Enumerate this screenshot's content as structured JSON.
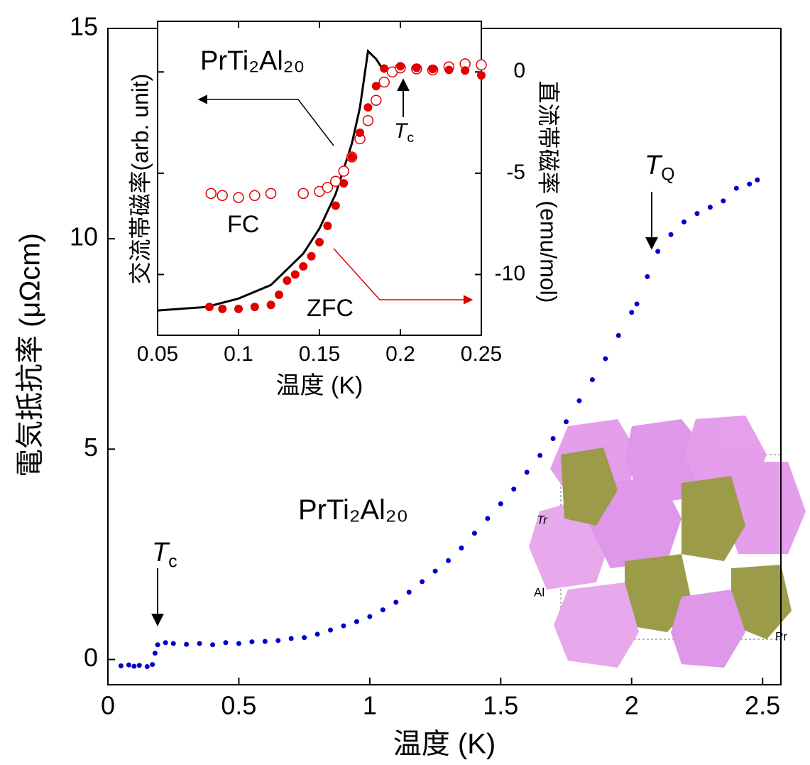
{
  "chart_data": [
    {
      "type": "scatter",
      "xlabel": "温度 (K)",
      "ylabel": "電気抵抗率 (μΩcm)",
      "xlim": [
        0,
        2.57
      ],
      "ylim": [
        -0.6,
        15
      ],
      "xticks": [
        0,
        0.5,
        1,
        1.5,
        2,
        2.5
      ],
      "yticks": [
        0,
        5,
        10,
        15
      ],
      "annotations": [
        {
          "text": "T",
          "sub": "c"
        },
        {
          "text": "T",
          "sub": "Q"
        },
        {
          "text": "PrTi₂Al₂₀"
        }
      ],
      "structure_labels": [
        "Tr",
        "Al",
        "Pr"
      ],
      "series": [
        {
          "color": "#0000cc",
          "x": [
            0.05,
            0.08,
            0.1,
            0.12,
            0.15,
            0.17,
            0.18,
            0.19,
            0.22,
            0.25,
            0.3,
            0.35,
            0.4,
            0.45,
            0.5,
            0.55,
            0.6,
            0.65,
            0.7,
            0.75,
            0.8,
            0.85,
            0.9,
            0.95,
            1.0,
            1.05,
            1.1,
            1.15,
            1.2,
            1.25,
            1.3,
            1.35,
            1.4,
            1.45,
            1.5,
            1.55,
            1.6,
            1.65,
            1.7,
            1.75,
            1.8,
            1.85,
            1.9,
            1.95,
            2.0,
            2.02,
            2.06,
            2.1,
            2.15,
            2.2,
            2.25,
            2.3,
            2.35,
            2.4,
            2.45,
            2.48
          ],
          "values": [
            -0.15,
            -0.13,
            -0.16,
            -0.14,
            -0.17,
            -0.12,
            0.15,
            0.35,
            0.4,
            0.38,
            0.36,
            0.38,
            0.35,
            0.4,
            0.38,
            0.42,
            0.43,
            0.45,
            0.5,
            0.52,
            0.6,
            0.7,
            0.8,
            0.9,
            1.02,
            1.18,
            1.36,
            1.6,
            1.85,
            2.1,
            2.35,
            2.65,
            3.0,
            3.35,
            3.7,
            4.05,
            4.45,
            4.85,
            5.25,
            5.65,
            6.15,
            6.65,
            7.15,
            7.7,
            8.25,
            8.45,
            9.1,
            9.7,
            10.1,
            10.4,
            10.6,
            10.75,
            10.9,
            11.2,
            11.3,
            11.4
          ]
        }
      ]
    },
    {
      "type": "line",
      "title": "PrTi₂Al₂₀",
      "xlabel": "温度 (K)",
      "ylabel": "交流帯磁率(arb. unit)",
      "y2label": "直流帯磁率 (emu/mol)",
      "xlim": [
        0.05,
        0.25
      ],
      "ylim": [
        0,
        1
      ],
      "y2lim": [
        -13,
        2.5
      ],
      "xticks": [
        0.05,
        0.1,
        0.15,
        0.2,
        0.25
      ],
      "y2ticks": [
        -10,
        -5,
        0
      ],
      "annotations": [
        {
          "text": "FC"
        },
        {
          "text": "ZFC"
        },
        {
          "text": "T",
          "sub": "c"
        }
      ],
      "series": [
        {
          "color": "#000000",
          "marker": "line",
          "x": [
            0.05,
            0.08,
            0.1,
            0.12,
            0.14,
            0.15,
            0.16,
            0.17,
            0.175,
            0.18,
            0.185,
            0.19,
            0.195
          ],
          "values": [
            0.079,
            0.09,
            0.117,
            0.16,
            0.26,
            0.34,
            0.45,
            0.61,
            0.725,
            0.905,
            0.88,
            0.84,
            0.85
          ]
        },
        {
          "color": "#e00000",
          "marker": "open-circle",
          "axis": "y2",
          "x": [
            0.083,
            0.09,
            0.1,
            0.11,
            0.12,
            0.14,
            0.15,
            0.155,
            0.16,
            0.165,
            0.17,
            0.175,
            0.18,
            0.185,
            0.19,
            0.195,
            0.2,
            0.21,
            0.22,
            0.23,
            0.24,
            0.25
          ],
          "values": [
            -6.0,
            -6.1,
            -6.2,
            -6.1,
            -6.0,
            -6.0,
            -5.9,
            -5.7,
            -5.4,
            -4.9,
            -4.2,
            -3.3,
            -2.4,
            -1.4,
            -0.5,
            0.0,
            0.2,
            0.15,
            0.1,
            0.25,
            0.4,
            0.35
          ]
        },
        {
          "color": "#e00000",
          "marker": "filled-circle",
          "axis": "y2",
          "x": [
            0.082,
            0.09,
            0.1,
            0.11,
            0.12,
            0.125,
            0.13,
            0.135,
            0.14,
            0.145,
            0.15,
            0.155,
            0.16,
            0.165,
            0.17,
            0.175,
            0.18,
            0.185,
            0.19,
            0.2,
            0.21,
            0.22,
            0.23,
            0.24,
            0.25
          ],
          "values": [
            -11.6,
            -11.7,
            -11.7,
            -11.6,
            -11.5,
            -11.0,
            -10.3,
            -10.0,
            -9.6,
            -9.1,
            -8.4,
            -7.6,
            -6.6,
            -5.5,
            -4.2,
            -3.0,
            -1.75,
            -0.7,
            0.17,
            0.28,
            0.2,
            0.14,
            0.1,
            0.07,
            -0.17
          ]
        }
      ]
    }
  ]
}
